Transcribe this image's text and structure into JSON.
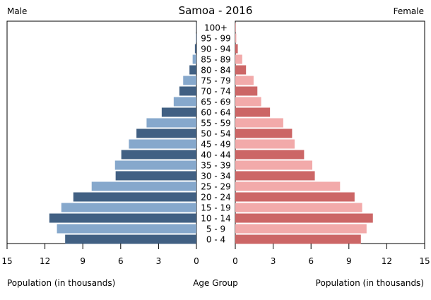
{
  "chart_data": {
    "type": "bar",
    "title": "Samoa - 2016",
    "left_label": "Male",
    "right_label": "Female",
    "xlabel_left": "Population (in thousands)",
    "xlabel_center": "Age Group",
    "xlabel_right": "Population (in thousands)",
    "xlim": [
      0,
      15
    ],
    "x_ticks": [
      "15",
      "12",
      "9",
      "6",
      "3",
      "0"
    ],
    "x_ticks_right": [
      "0",
      "3",
      "6",
      "9",
      "12",
      "15"
    ],
    "grid": false,
    "categories": [
      "100+",
      "95 - 99",
      "90 - 94",
      "85 - 89",
      "80 - 84",
      "75 - 79",
      "70 - 74",
      "65 - 69",
      "60 - 64",
      "55 - 59",
      "50 - 54",
      "45 - 49",
      "40 - 44",
      "35 - 39",
      "30 - 34",
      "25 - 29",
      "20 - 24",
      "15 - 19",
      "10 - 14",
      "5 - 9",
      "0 - 4"
    ],
    "series": [
      {
        "name": "Male",
        "values": [
          0.02,
          0.05,
          0.12,
          0.3,
          0.55,
          1.05,
          1.35,
          1.8,
          2.75,
          3.95,
          4.75,
          5.35,
          5.95,
          6.45,
          6.4,
          8.3,
          9.75,
          10.7,
          11.65,
          11.05,
          10.4
        ]
      },
      {
        "name": "Female",
        "values": [
          0.03,
          0.08,
          0.2,
          0.55,
          0.85,
          1.45,
          1.75,
          2.05,
          2.75,
          3.8,
          4.5,
          4.7,
          5.45,
          6.1,
          6.3,
          8.3,
          9.45,
          10.05,
          10.9,
          10.4,
          9.95
        ]
      }
    ],
    "colors": {
      "male_dark": "#416083",
      "male_light": "#86a8cc",
      "female_dark": "#cc6666",
      "female_light": "#f2aaaa"
    }
  }
}
